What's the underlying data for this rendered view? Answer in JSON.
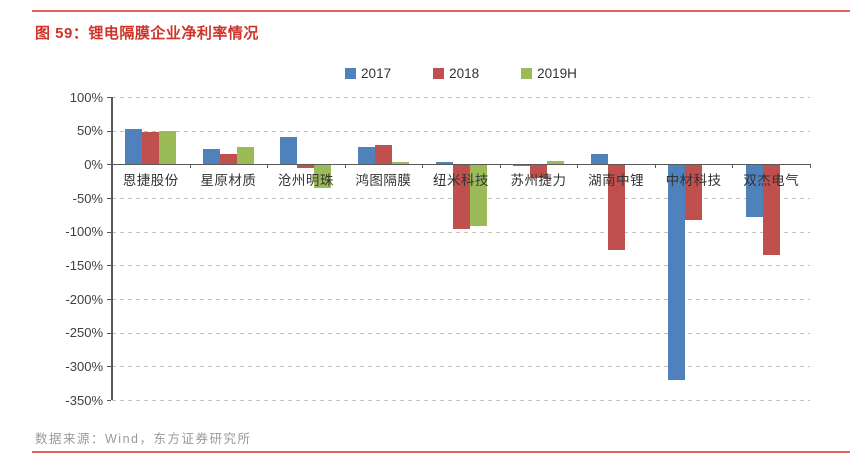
{
  "page": {
    "title": "图 59：锂电隔膜企业净利率情况",
    "source": "数据来源：Wind，东方证券研究所"
  },
  "colors": {
    "accent_red": "#cf342b",
    "rule_red": "#e0645c",
    "axis": "#595959",
    "grid": "#bfbfbf",
    "source_text": "#999999",
    "series_2017": "#4f81bd",
    "series_2018": "#c0504d",
    "series_2019H": "#9bbb59"
  },
  "chart_data": {
    "type": "bar",
    "title": "锂电隔膜企业净利率情况",
    "categories": [
      "恩捷股份",
      "星原材质",
      "沧州明珠",
      "鸿图隔膜",
      "纽米科技",
      "苏州捷力",
      "湖南中锂",
      "中材科技",
      "双杰电气"
    ],
    "series": [
      {
        "name": "2017",
        "color": "#4f81bd",
        "values": [
          52,
          23,
          41,
          26,
          4,
          -2,
          15,
          -320,
          -78
        ]
      },
      {
        "name": "2018",
        "color": "#c0504d",
        "values": [
          48,
          16,
          -6,
          28,
          -96,
          -20,
          -127,
          -82,
          -135
        ]
      },
      {
        "name": "2019H",
        "color": "#9bbb59",
        "values": [
          50,
          26,
          -35,
          4,
          -92,
          5,
          null,
          null,
          null
        ]
      }
    ],
    "ylabel": "",
    "xlabel": "",
    "ylim": [
      -350,
      100
    ],
    "ytick_step": 50,
    "ytick_labels": [
      "100%",
      "50%",
      "0%",
      "-50%",
      "-100%",
      "-150%",
      "-200%",
      "-250%",
      "-300%",
      "-350%"
    ],
    "grid": "horizontal-dashed",
    "legend_position": "top-center"
  }
}
